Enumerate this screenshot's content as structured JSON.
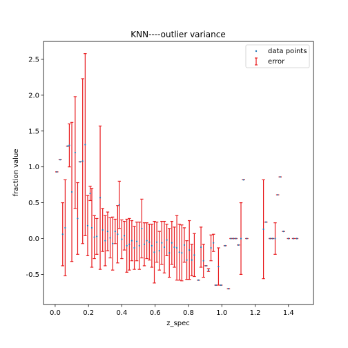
{
  "chart_data": {
    "type": "scatter",
    "title": "KNN----outlier variance",
    "xlabel": "z_spec",
    "ylabel": "fraction value",
    "xlim": [
      -0.07,
      1.55
    ],
    "ylim": [
      -0.92,
      2.75
    ],
    "xticks": [
      "0.0",
      "0.2",
      "0.4",
      "0.6",
      "0.8",
      "1.0",
      "1.2",
      "1.4"
    ],
    "yticks": [
      "-0.5",
      "0.0",
      "0.5",
      "1.0",
      "1.5",
      "2.0",
      "2.5"
    ],
    "xtick_values": [
      0.0,
      0.2,
      0.4,
      0.6,
      0.8,
      1.0,
      1.2,
      1.4
    ],
    "ytick_values": [
      -0.5,
      0.0,
      0.5,
      1.0,
      1.5,
      2.0,
      2.5
    ],
    "grid": false,
    "legend": {
      "placement": "upper right",
      "entries": [
        {
          "label": "data points",
          "marker": "point"
        },
        {
          "label": "error",
          "marker": "errorbar"
        }
      ]
    },
    "colors": {
      "points": "#1f77b4",
      "errorbars": "#e8191c"
    },
    "series": [
      {
        "name": "data points",
        "points": [
          {
            "x": 0.01,
            "y": 0.93,
            "err": 0
          },
          {
            "x": 0.03,
            "y": 1.1,
            "err": 0
          },
          {
            "x": 0.045,
            "y": 0.06,
            "err": 0.44
          },
          {
            "x": 0.06,
            "y": 0.15,
            "err": 0.67
          },
          {
            "x": 0.075,
            "y": 1.29,
            "err": 0
          },
          {
            "x": 0.085,
            "y": 1.3,
            "err": 0.3
          },
          {
            "x": 0.1,
            "y": 0.65,
            "err": 0.97
          },
          {
            "x": 0.12,
            "y": 1.2,
            "err": 0.78
          },
          {
            "x": 0.135,
            "y": 0.28,
            "err": 0.5
          },
          {
            "x": 0.15,
            "y": 1.07,
            "err": 0
          },
          {
            "x": 0.165,
            "y": 1.08,
            "err": 1.15
          },
          {
            "x": 0.18,
            "y": 1.31,
            "err": 1.27
          },
          {
            "x": 0.195,
            "y": 0.18,
            "err": 0.42
          },
          {
            "x": 0.21,
            "y": 0.63,
            "err": 0.1
          },
          {
            "x": 0.22,
            "y": 0.15,
            "err": 0.55
          },
          {
            "x": 0.235,
            "y": 0.02,
            "err": 0.3
          },
          {
            "x": 0.25,
            "y": 0.03,
            "err": 0.25
          },
          {
            "x": 0.27,
            "y": 0.57,
            "err": 1.0
          },
          {
            "x": 0.285,
            "y": 0.12,
            "err": 0.3
          },
          {
            "x": 0.3,
            "y": -0.03,
            "err": 0.35
          },
          {
            "x": 0.315,
            "y": 0.1,
            "err": 0.27
          },
          {
            "x": 0.33,
            "y": 0.01,
            "err": 0.28
          },
          {
            "x": 0.345,
            "y": -0.07,
            "err": 0.37
          },
          {
            "x": 0.36,
            "y": 0.1,
            "err": 0.17
          },
          {
            "x": 0.375,
            "y": 0.06,
            "err": 0.4
          },
          {
            "x": 0.385,
            "y": 0.47,
            "err": 0.33
          },
          {
            "x": 0.4,
            "y": -0.01,
            "err": 0.27
          },
          {
            "x": 0.415,
            "y": 0.04,
            "err": 0.2
          },
          {
            "x": 0.43,
            "y": -0.1,
            "err": 0.37
          },
          {
            "x": 0.445,
            "y": -0.08,
            "err": 0.36
          },
          {
            "x": 0.46,
            "y": -0.03,
            "err": 0.28
          },
          {
            "x": 0.475,
            "y": -0.13,
            "err": 0.3
          },
          {
            "x": 0.49,
            "y": -0.04,
            "err": 0.27
          },
          {
            "x": 0.505,
            "y": -0.1,
            "err": 0.33
          },
          {
            "x": 0.52,
            "y": 0.14,
            "err": 0.41
          },
          {
            "x": 0.535,
            "y": -0.08,
            "err": 0.3
          },
          {
            "x": 0.55,
            "y": -0.03,
            "err": 0.25
          },
          {
            "x": 0.565,
            "y": -0.05,
            "err": 0.25
          },
          {
            "x": 0.58,
            "y": -0.1,
            "err": 0.3
          },
          {
            "x": 0.595,
            "y": -0.19,
            "err": 0.43
          },
          {
            "x": 0.61,
            "y": -0.05,
            "err": 0.28
          },
          {
            "x": 0.625,
            "y": -0.17,
            "err": 0.27
          },
          {
            "x": 0.64,
            "y": -0.06,
            "err": 0.3
          },
          {
            "x": 0.655,
            "y": -0.12,
            "err": 0.36
          },
          {
            "x": 0.67,
            "y": -0.02,
            "err": 0.22
          },
          {
            "x": 0.685,
            "y": -0.2,
            "err": 0.34
          },
          {
            "x": 0.7,
            "y": -0.06,
            "err": 0.3
          },
          {
            "x": 0.715,
            "y": -0.12,
            "err": 0.28
          },
          {
            "x": 0.73,
            "y": -0.13,
            "err": 0.45
          },
          {
            "x": 0.745,
            "y": -0.19,
            "err": 0.39
          },
          {
            "x": 0.76,
            "y": -0.2,
            "err": 0.39
          },
          {
            "x": 0.775,
            "y": -0.09,
            "err": 0.24
          },
          {
            "x": 0.79,
            "y": -0.3,
            "err": 0.27
          },
          {
            "x": 0.805,
            "y": -0.16,
            "err": 0.41
          },
          {
            "x": 0.82,
            "y": -0.3,
            "err": 0.22
          },
          {
            "x": 0.835,
            "y": -0.23,
            "err": 0.3
          },
          {
            "x": 0.86,
            "y": -0.58,
            "err": 0
          },
          {
            "x": 0.875,
            "y": -0.12,
            "err": 0.28
          },
          {
            "x": 0.89,
            "y": -0.31,
            "err": 0.23
          },
          {
            "x": 0.905,
            "y": -0.38,
            "err": 0
          },
          {
            "x": 0.92,
            "y": -0.44,
            "err": 0.02
          },
          {
            "x": 0.935,
            "y": -0.13,
            "err": 0.18
          },
          {
            "x": 0.95,
            "y": -0.06,
            "err": 0.12
          },
          {
            "x": 0.965,
            "y": -0.65,
            "err": 0
          },
          {
            "x": 0.98,
            "y": -0.39,
            "err": 0.26
          },
          {
            "x": 0.995,
            "y": -0.65,
            "err": 0
          },
          {
            "x": 1.02,
            "y": -0.1,
            "err": 0
          },
          {
            "x": 1.04,
            "y": -0.7,
            "err": 0
          },
          {
            "x": 1.055,
            "y": 0.0,
            "err": 0
          },
          {
            "x": 1.07,
            "y": 0.0,
            "err": 0
          },
          {
            "x": 1.085,
            "y": 0.0,
            "err": 0
          },
          {
            "x": 1.1,
            "y": -0.09,
            "err": 0
          },
          {
            "x": 1.115,
            "y": 0.0,
            "err": 0.5
          },
          {
            "x": 1.13,
            "y": 0.82,
            "err": 0
          },
          {
            "x": 1.15,
            "y": 0.0,
            "err": 0
          },
          {
            "x": 1.25,
            "y": 0.13,
            "err": 0.69
          },
          {
            "x": 1.265,
            "y": 0.23,
            "err": 0
          },
          {
            "x": 1.29,
            "y": 0.0,
            "err": 0
          },
          {
            "x": 1.305,
            "y": 0.0,
            "err": 0
          },
          {
            "x": 1.32,
            "y": 0.0,
            "err": 0.22
          },
          {
            "x": 1.335,
            "y": 0.61,
            "err": 0
          },
          {
            "x": 1.35,
            "y": 0.86,
            "err": 0
          },
          {
            "x": 1.37,
            "y": 0.1,
            "err": 0
          },
          {
            "x": 1.4,
            "y": 0.0,
            "err": 0
          },
          {
            "x": 1.43,
            "y": 0.0,
            "err": 0
          },
          {
            "x": 1.45,
            "y": 0.0,
            "err": 0
          }
        ]
      }
    ]
  }
}
